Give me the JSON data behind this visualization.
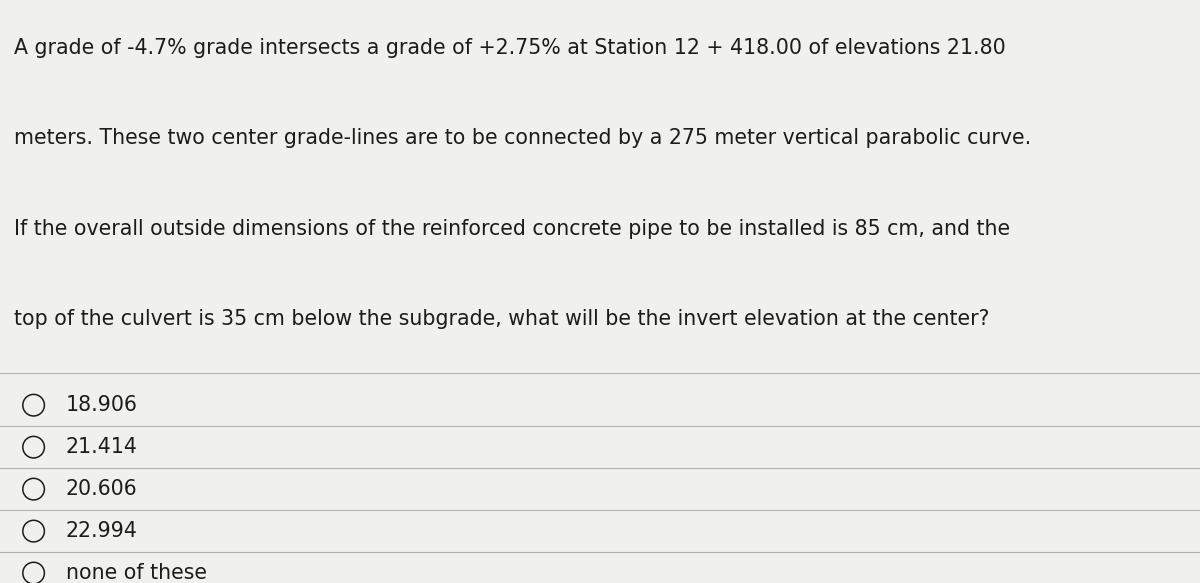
{
  "background_color": "#f0f0ec",
  "question_text_lines": [
    "A grade of -4.7% grade intersects a grade of +2.75% at Station 12 + 418.00 of elevations 21.80",
    "meters. These two center grade-lines are to be connected by a 275 meter vertical parabolic curve.",
    "If the overall outside dimensions of the reinforced concrete pipe to be installed is 85 cm, and the",
    "top of the culvert is 35 cm below the subgrade, what will be the invert elevation at the center?"
  ],
  "choices": [
    "18.906",
    "21.414",
    "20.606",
    "22.994",
    "none of these"
  ],
  "text_color": "#1c1c1c",
  "line_color": "#b0b0b0",
  "font_size_question": 14.8,
  "font_size_choices": 14.8,
  "fig_width": 12.0,
  "fig_height": 5.83
}
